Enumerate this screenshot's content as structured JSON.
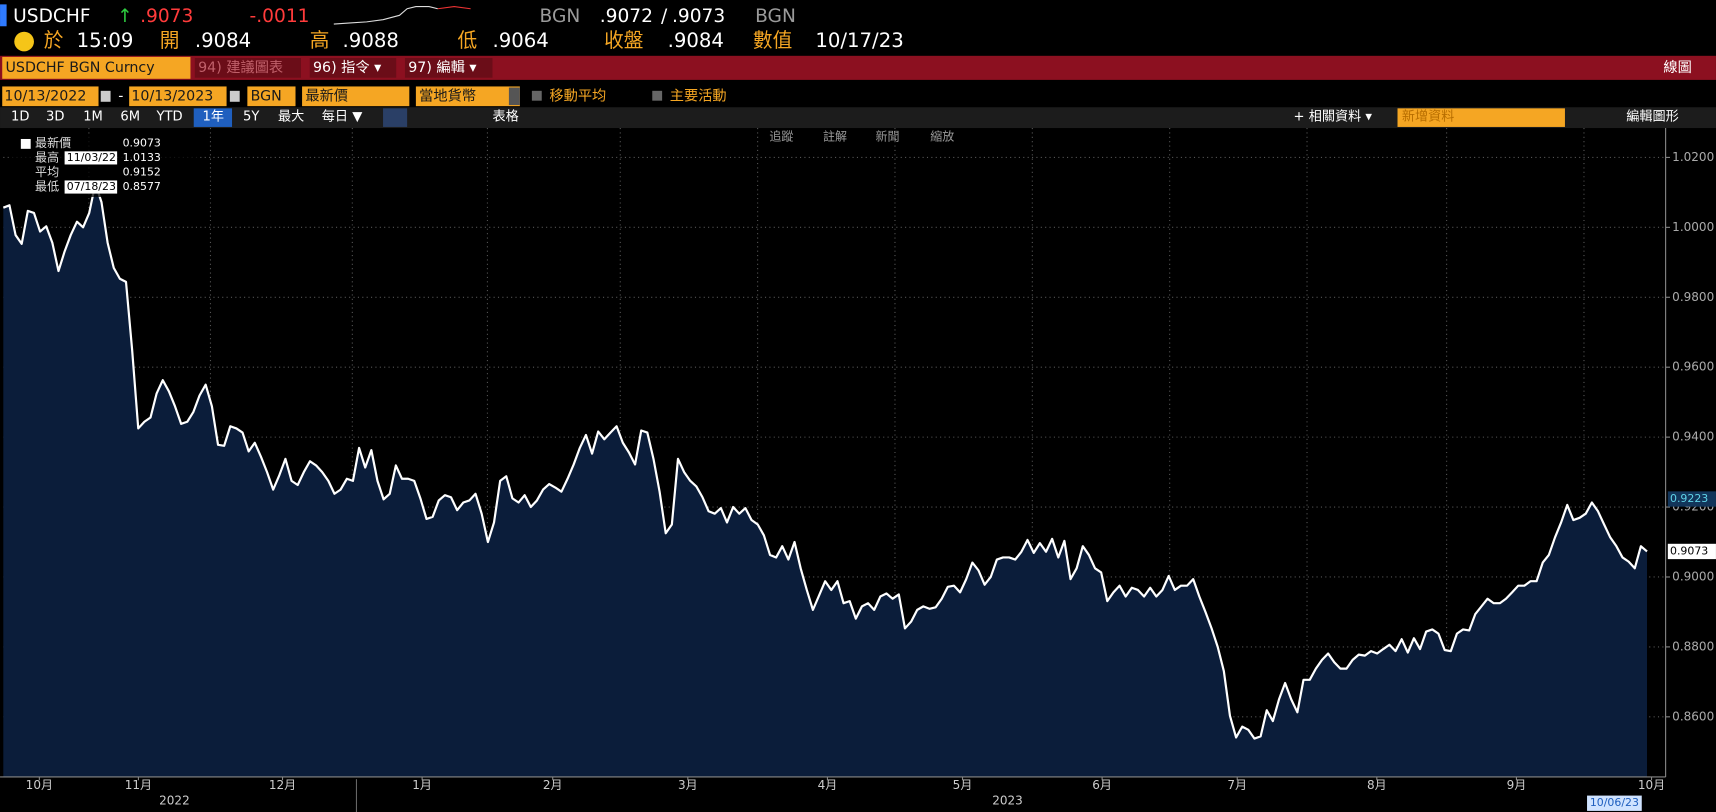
{
  "header": {
    "ticker": "USDCHF",
    "arrow": "↑",
    "last": ".9073",
    "change": "-.0011",
    "source": "BGN",
    "bid": ".9072",
    "sep": "/",
    "ask": ".9073",
    "source2": "BGN",
    "at_label": "於",
    "time": "15:09",
    "open_label": "開",
    "open": ".9084",
    "high_label": "高",
    "high": ".9088",
    "low_label": "低",
    "low": ".9064",
    "close_label": "收盤",
    "close": ".9084",
    "value_label": "數值",
    "date": "10/17/23"
  },
  "menu": {
    "security": "USDCHF BGN Curncy",
    "suggest": "94) 建議圖表",
    "commands": "96) 指令 ▾",
    "edit": "97) 編輯 ▾",
    "chart_type": "線圖"
  },
  "controls": {
    "start": "10/13/2022",
    "dash": "-",
    "end": "10/13/2023",
    "source": "BGN",
    "field": "最新價",
    "currency": "當地貨幣",
    "moving_avg": "移動平均",
    "events": "主要活動"
  },
  "toolbar": {
    "ranges": [
      "1D",
      "3D",
      "1M",
      "6M",
      "YTD",
      "1年",
      "5Y",
      "最大"
    ],
    "period": "每日 ▼",
    "table": "表格",
    "related": "+ 相關資料 ▾",
    "add_data": "新增資料",
    "edit_chart": "編輯圖形"
  },
  "chart_tools": [
    "追蹤",
    "註解",
    "新聞",
    "縮放"
  ],
  "legend": [
    {
      "label": "最新價",
      "value": "0.9073"
    },
    {
      "label": "最高",
      "date": "11/03/22",
      "value": "1.0133"
    },
    {
      "label": "平均",
      "value": "0.9152"
    },
    {
      "label": "最低",
      "date": "07/18/23",
      "value": "0.8577"
    }
  ],
  "chart_data": {
    "type": "line",
    "series": [
      {
        "color": "#ffffff",
        "fill": "#0b1d3a",
        "values": [
          1.0056,
          1.0063,
          0.9978,
          0.9953,
          1.0047,
          1.0041,
          0.9988,
          1.0003,
          0.9956,
          0.9875,
          0.9931,
          0.9978,
          1.0016,
          1.0,
          1.0041,
          1.0125,
          1.0072,
          0.9956,
          0.9884,
          0.9853,
          0.9844,
          0.965,
          0.9425,
          0.9444,
          0.9456,
          0.9525,
          0.9563,
          0.9531,
          0.9488,
          0.9438,
          0.9444,
          0.9472,
          0.9519,
          0.955,
          0.9488,
          0.9378,
          0.9375,
          0.9431,
          0.9425,
          0.9413,
          0.9359,
          0.9384,
          0.9344,
          0.93,
          0.925,
          0.9291,
          0.9338,
          0.9275,
          0.9263,
          0.93,
          0.9331,
          0.9319,
          0.93,
          0.9275,
          0.9238,
          0.925,
          0.9281,
          0.9275,
          0.9369,
          0.9313,
          0.9363,
          0.9275,
          0.9222,
          0.9238,
          0.9319,
          0.9281,
          0.9281,
          0.9275,
          0.9225,
          0.9166,
          0.9172,
          0.9219,
          0.9234,
          0.9228,
          0.9191,
          0.9213,
          0.9219,
          0.9238,
          0.9181,
          0.91,
          0.9156,
          0.9275,
          0.9288,
          0.9225,
          0.9213,
          0.9234,
          0.92,
          0.9219,
          0.925,
          0.9266,
          0.9256,
          0.9244,
          0.9281,
          0.9322,
          0.9369,
          0.9406,
          0.9353,
          0.9416,
          0.9394,
          0.9413,
          0.9431,
          0.9384,
          0.9356,
          0.9322,
          0.9419,
          0.9413,
          0.9338,
          0.9244,
          0.9125,
          0.915,
          0.9338,
          0.93,
          0.9275,
          0.9259,
          0.9228,
          0.9188,
          0.9181,
          0.9197,
          0.9156,
          0.92,
          0.9181,
          0.9197,
          0.9163,
          0.915,
          0.9119,
          0.9063,
          0.9056,
          0.9088,
          0.905,
          0.91,
          0.9025,
          0.8963,
          0.8906,
          0.8947,
          0.8988,
          0.8963,
          0.8988,
          0.8925,
          0.8931,
          0.8881,
          0.8916,
          0.8925,
          0.8906,
          0.8944,
          0.8953,
          0.8938,
          0.895,
          0.8853,
          0.8872,
          0.8906,
          0.8916,
          0.8909,
          0.8913,
          0.8938,
          0.8972,
          0.8975,
          0.8956,
          0.8994,
          0.9041,
          0.9019,
          0.8978,
          0.9,
          0.905,
          0.9056,
          0.9056,
          0.905,
          0.9072,
          0.9106,
          0.9069,
          0.9097,
          0.9072,
          0.9109,
          0.9056,
          0.9103,
          0.8994,
          0.9025,
          0.9088,
          0.9063,
          0.9025,
          0.9013,
          0.8931,
          0.8956,
          0.8975,
          0.8944,
          0.8969,
          0.8963,
          0.8944,
          0.8969,
          0.8944,
          0.8963,
          0.9003,
          0.8963,
          0.8975,
          0.8975,
          0.8994,
          0.8944,
          0.89,
          0.8853,
          0.88,
          0.8731,
          0.8603,
          0.8541,
          0.8572,
          0.8563,
          0.8538,
          0.8544,
          0.8619,
          0.8588,
          0.865,
          0.8697,
          0.865,
          0.8613,
          0.8706,
          0.8706,
          0.8738,
          0.8763,
          0.8781,
          0.8756,
          0.8738,
          0.8738,
          0.8763,
          0.8778,
          0.8775,
          0.8788,
          0.8781,
          0.8794,
          0.8806,
          0.8788,
          0.8822,
          0.8784,
          0.8825,
          0.8794,
          0.8844,
          0.885,
          0.8838,
          0.8791,
          0.8788,
          0.8838,
          0.885,
          0.8847,
          0.8894,
          0.8916,
          0.8938,
          0.8925,
          0.8925,
          0.8938,
          0.8956,
          0.8975,
          0.8975,
          0.8988,
          0.8988,
          0.9041,
          0.9063,
          0.9113,
          0.9156,
          0.9206,
          0.9163,
          0.9169,
          0.9181,
          0.9213,
          0.9188,
          0.915,
          0.9113,
          0.9088,
          0.9056,
          0.9044,
          0.9025,
          0.9088,
          0.9073
        ]
      }
    ],
    "xlim": [
      0,
      365
    ],
    "xticks": [
      {
        "value": 8,
        "label": "10月"
      },
      {
        "value": 30,
        "label": "11月"
      },
      {
        "value": 62,
        "label": "12月"
      },
      {
        "value": 93,
        "label": "1月"
      },
      {
        "value": 122,
        "label": "2月"
      },
      {
        "value": 152,
        "label": "3月"
      },
      {
        "value": 183,
        "label": "4月"
      },
      {
        "value": 213,
        "label": "5月"
      },
      {
        "value": 244,
        "label": "6月"
      },
      {
        "value": 274,
        "label": "7月"
      },
      {
        "value": 305,
        "label": "8月"
      },
      {
        "value": 336,
        "label": "9月"
      },
      {
        "value": 366,
        "label": "10月"
      }
    ],
    "years": [
      {
        "value": 38,
        "label": "2022"
      },
      {
        "value": 223,
        "label": "2023"
      }
    ],
    "ylim": [
      0.8428,
      1.0284
    ],
    "yticks": [
      {
        "value": 0.86,
        "label": "0.8600"
      },
      {
        "value": 0.88,
        "label": "0.8800"
      },
      {
        "value": 0.9,
        "label": "0.9000"
      },
      {
        "value": 0.92,
        "label": "0.9200"
      },
      {
        "value": 0.94,
        "label": "0.9400"
      },
      {
        "value": 0.96,
        "label": "0.9600"
      },
      {
        "value": 0.98,
        "label": "0.9800"
      },
      {
        "value": 1.0,
        "label": "1.0000"
      },
      {
        "value": 1.02,
        "label": "1.0200"
      }
    ],
    "markers": [
      {
        "value": 0.9223,
        "color": "#5fd3e8"
      },
      {
        "value": 0.9073,
        "color": "#ffffff"
      }
    ],
    "date_flag": {
      "value": 358,
      "label": "10/06/23"
    },
    "grid": true
  }
}
